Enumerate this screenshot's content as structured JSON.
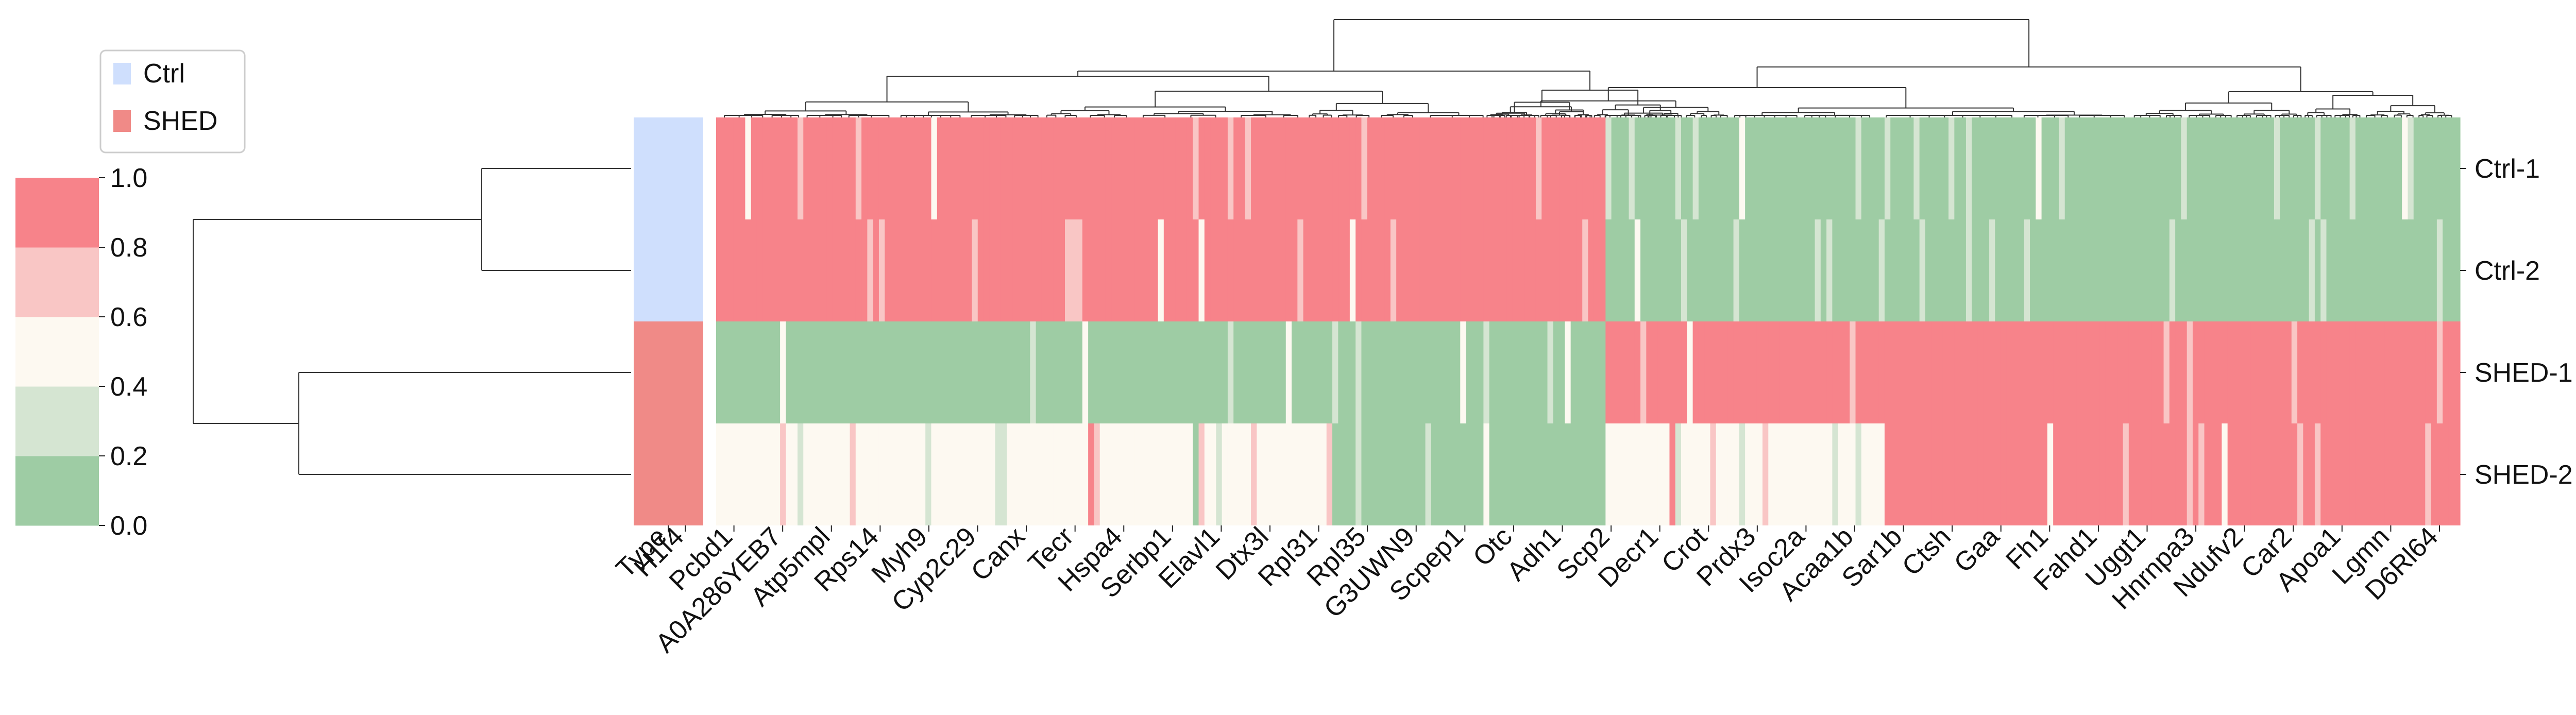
{
  "chart_data": {
    "type": "heatmap",
    "title": "",
    "xlabel": "",
    "ylabel": "",
    "rows": [
      "Ctrl-1",
      "Ctrl-2",
      "SHED-1",
      "SHED-2"
    ],
    "type_annotation": {
      "label": "Type",
      "values": [
        "Ctrl",
        "Ctrl",
        "SHED",
        "SHED"
      ]
    },
    "legend": {
      "placement": "top-left",
      "items": [
        {
          "label": "Ctrl",
          "color": "#cfdffd"
        },
        {
          "label": "SHED",
          "color": "#f08a87"
        }
      ]
    },
    "colorbar": {
      "ticks": [
        "0.0",
        "0.2",
        "0.4",
        "0.6",
        "0.8",
        "1.0"
      ],
      "range": [
        0,
        1
      ],
      "colors": [
        "#9ecca4",
        "#d5e5d2",
        "#fdf9f1",
        "#f9c6c5",
        "#f7838a"
      ]
    },
    "gene_labels": [
      "H1f4",
      "Pcbd1",
      "A0A286YEB7",
      "Atp5mpl",
      "Rps14",
      "Myh9",
      "Cyp2c29",
      "Canx",
      "Tecr",
      "Hspa4",
      "Serbp1",
      "Elavl1",
      "Dtx3l",
      "Rpl31",
      "Rpl35",
      "G3UWN9",
      "Scpep1",
      "Otc",
      "Adh1",
      "Scp2",
      "Decr1",
      "Crot",
      "Prdx3",
      "Isoc2a",
      "Acaa1b",
      "Sar1b",
      "Ctsh",
      "Gaa",
      "Fh1",
      "Fahd1",
      "Uggt1",
      "Hnrnpa3",
      "Ndufv2",
      "Car2",
      "Apoa1",
      "Lgmn",
      "D6Rl64"
    ],
    "column_groups": [
      {
        "cols": 106,
        "rows": [
          1.0,
          1.0,
          0.0,
          0.5
        ]
      },
      {
        "cols": 47,
        "rows": [
          0.9,
          0.9,
          0.1,
          0.1
        ]
      },
      {
        "cols": 48,
        "rows": [
          0.0,
          0.0,
          1.0,
          0.5
        ]
      },
      {
        "cols": 51,
        "rows": [
          0.1,
          0.1,
          0.9,
          0.9
        ]
      },
      {
        "cols": 48,
        "rows": [
          0.0,
          0.1,
          1.0,
          1.0
        ]
      }
    ],
    "grid": false
  }
}
